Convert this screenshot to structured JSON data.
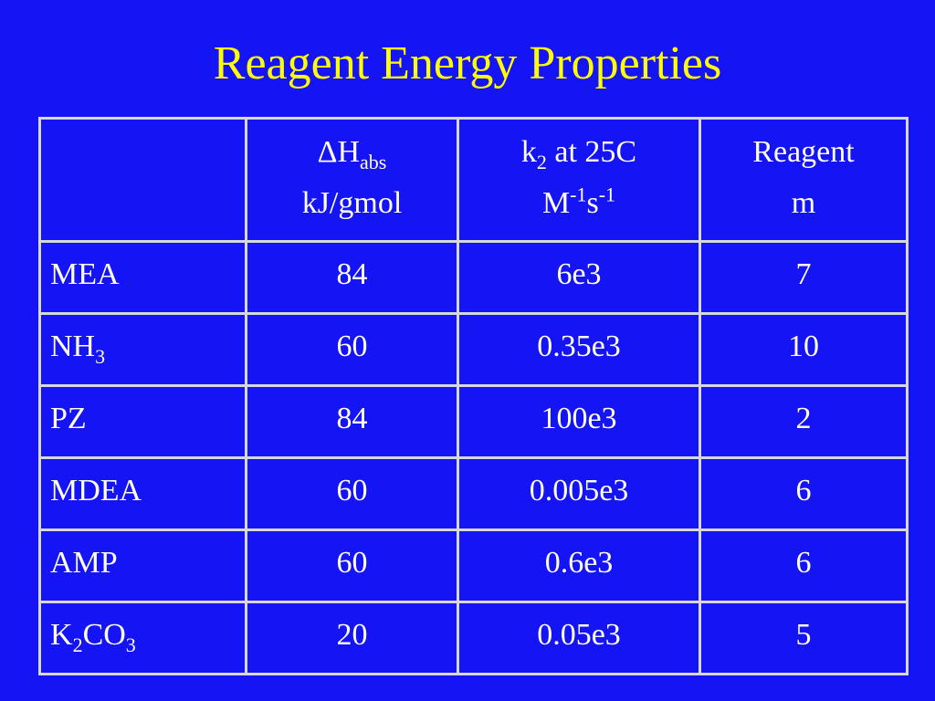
{
  "title": "Reagent Energy Properties",
  "table": {
    "columns": [
      {
        "lines": [
          [
            {
              "text": "ΔH"
            },
            {
              "sub": "abs"
            }
          ],
          [
            {
              "text": "kJ/gmol"
            }
          ]
        ]
      },
      {
        "lines": [
          [
            {
              "text": "k"
            },
            {
              "sub": "2"
            },
            {
              "text": " at 25C"
            }
          ],
          [
            {
              "text": "M"
            },
            {
              "sup": "-1"
            },
            {
              "text": "s"
            },
            {
              "sup": "-1"
            }
          ]
        ]
      },
      {
        "lines": [
          [
            {
              "text": "Reagent"
            }
          ],
          [
            {
              "text": "m"
            }
          ]
        ]
      }
    ],
    "rows": [
      {
        "name": [
          {
            "text": "MEA"
          }
        ],
        "cells": [
          "84",
          "6e3",
          "7"
        ]
      },
      {
        "name": [
          {
            "text": "NH"
          },
          {
            "sub": "3"
          }
        ],
        "cells": [
          "60",
          "0.35e3",
          "10"
        ]
      },
      {
        "name": [
          {
            "text": "PZ"
          }
        ],
        "cells": [
          "84",
          "100e3",
          "2"
        ]
      },
      {
        "name": [
          {
            "text": "MDEA"
          }
        ],
        "cells": [
          "60",
          "0.005e3",
          "6"
        ]
      },
      {
        "name": [
          {
            "text": "AMP"
          }
        ],
        "cells": [
          "60",
          "0.6e3",
          "6"
        ]
      },
      {
        "name": [
          {
            "text": "K"
          },
          {
            "sub": "2"
          },
          {
            "text": "CO"
          },
          {
            "sub": "3"
          }
        ],
        "cells": [
          "20",
          "0.05e3",
          "5"
        ]
      }
    ]
  }
}
